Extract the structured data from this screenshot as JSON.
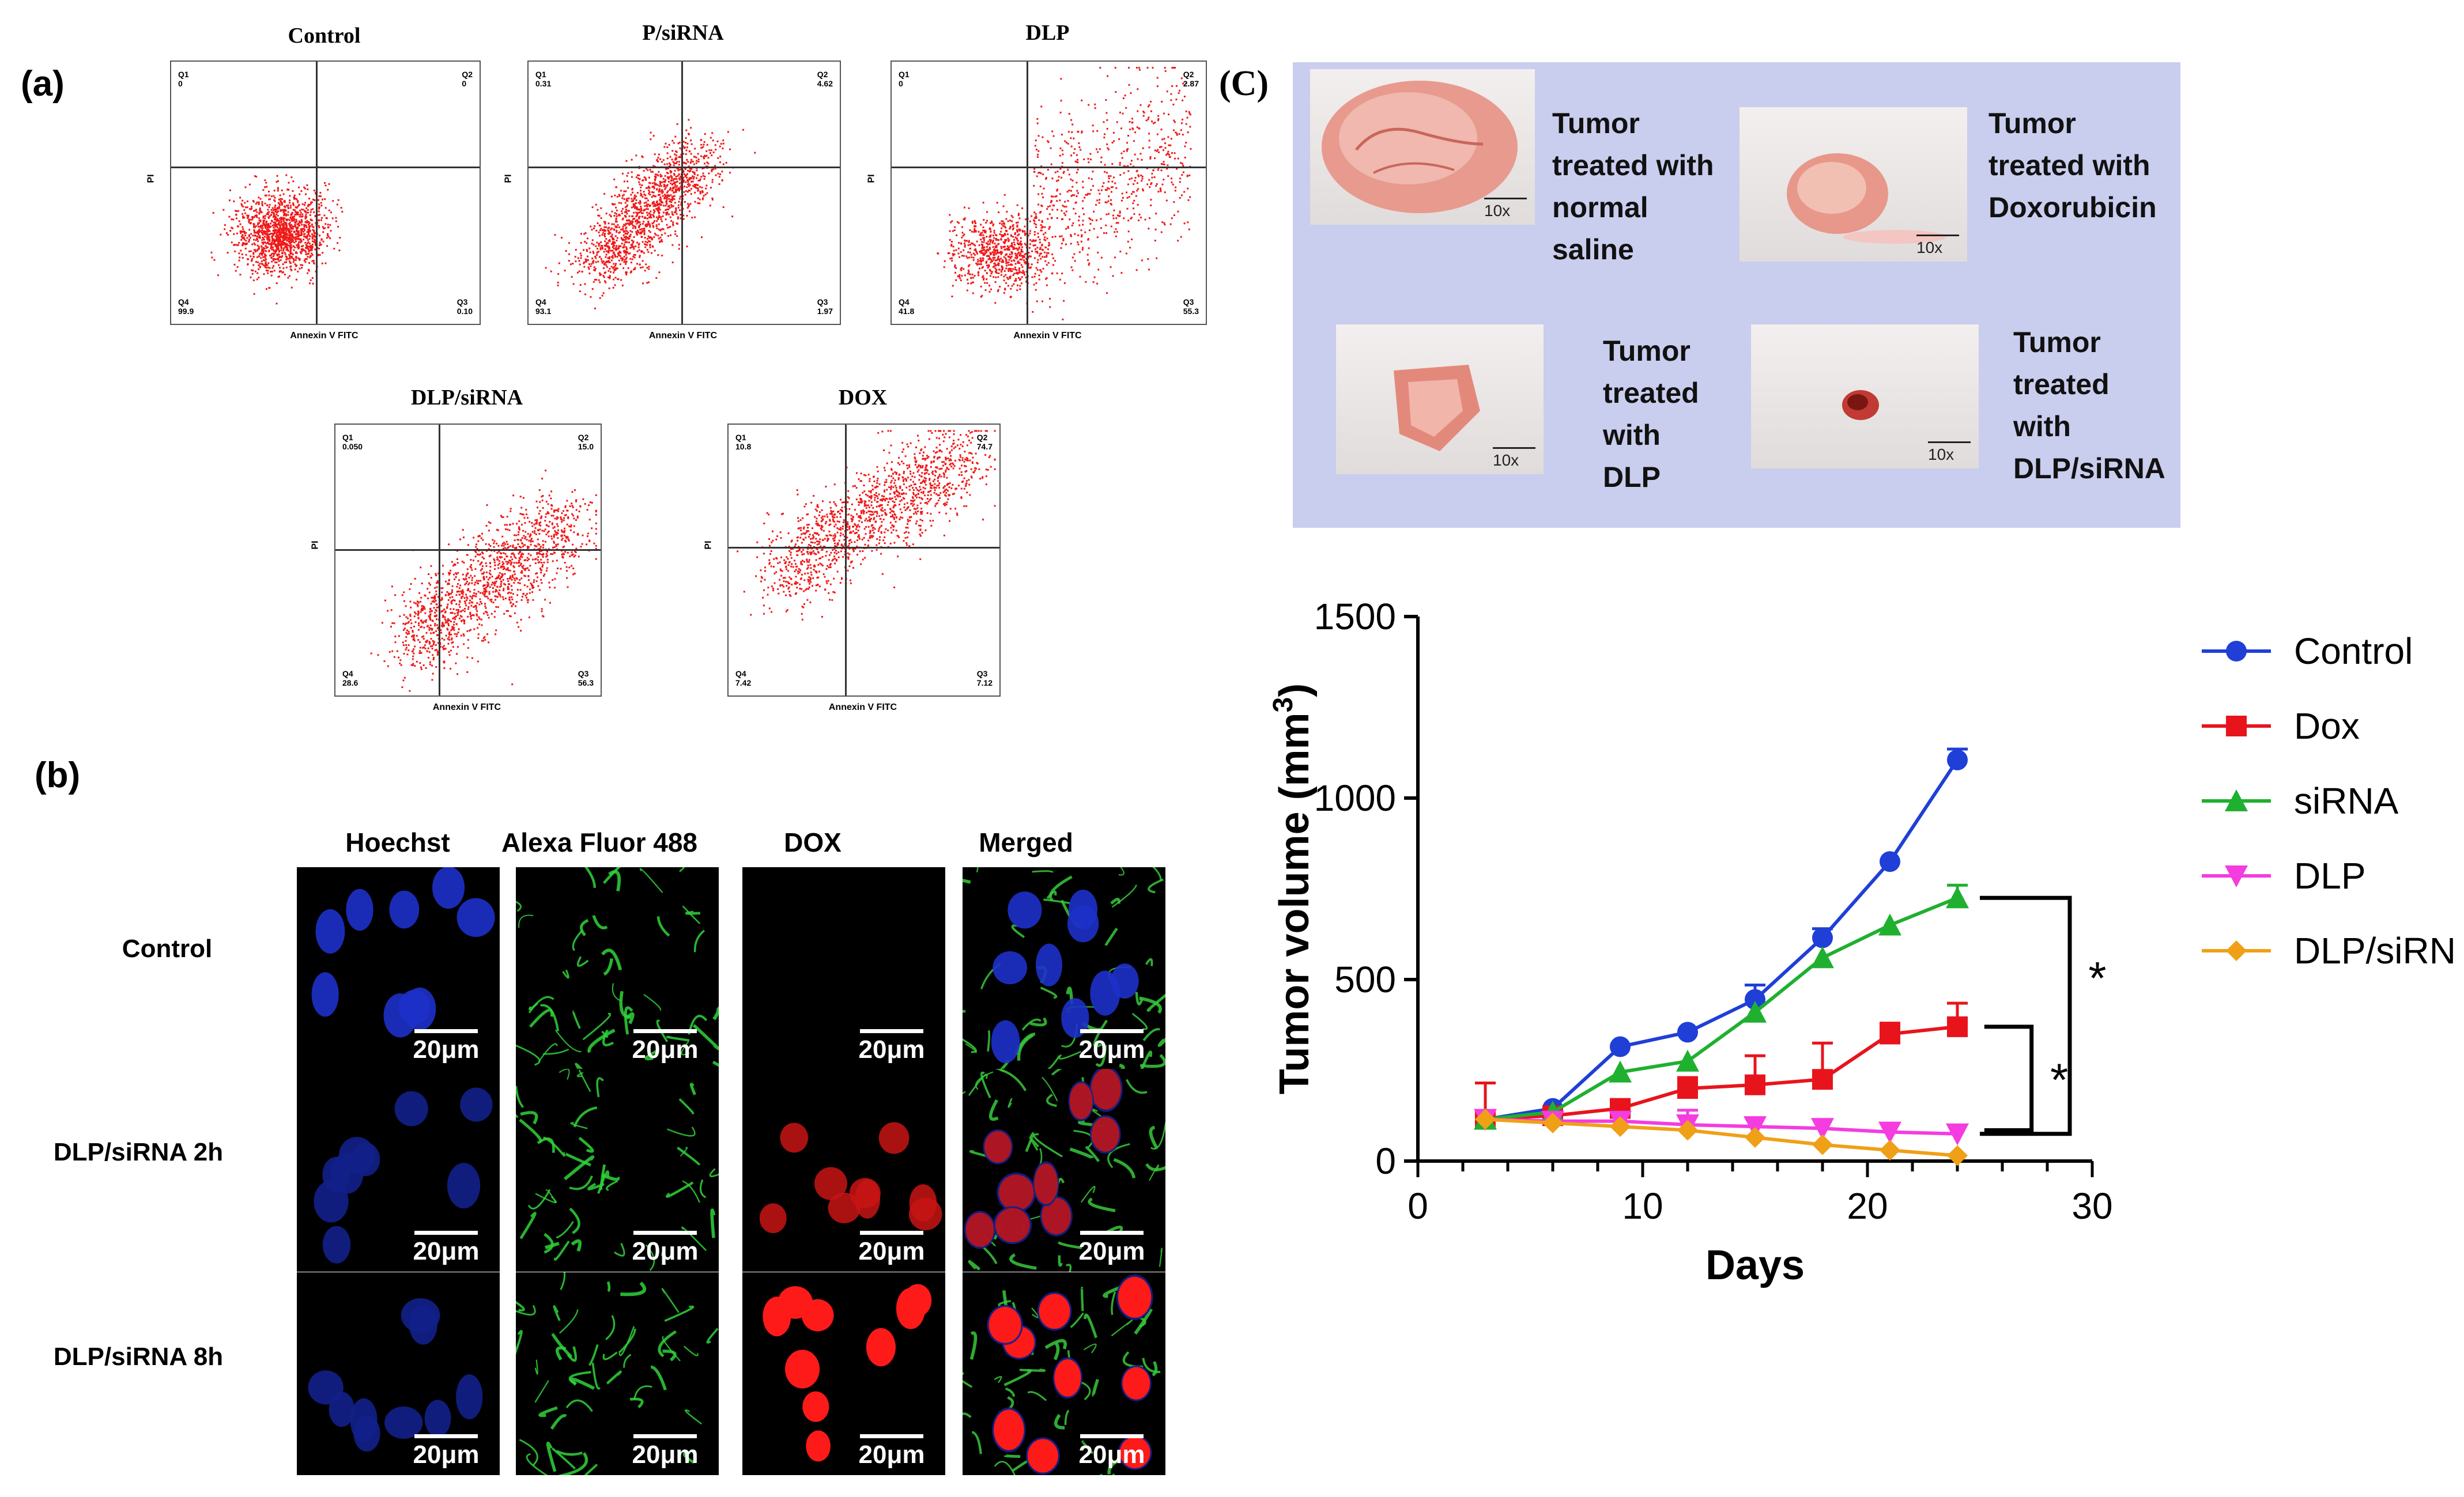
{
  "panel_labels": {
    "a": "(a)",
    "b": "(b)",
    "c": "(C)"
  },
  "flow": {
    "x_axis_label": "Annexin V FITC",
    "y_axis_label": "PI",
    "plots": [
      {
        "title": "Control",
        "q1": "Q1",
        "q1v": "0",
        "q2": "Q2",
        "q2v": "0",
        "q3": "Q3",
        "q3v": "0.10",
        "q4": "Q4",
        "q4v": "99.9"
      },
      {
        "title": "P/siRNA",
        "q1": "Q1",
        "q1v": "0.31",
        "q2": "Q2",
        "q2v": "4.62",
        "q3": "Q3",
        "q3v": "1.97",
        "q4": "Q4",
        "q4v": "93.1"
      },
      {
        "title": "DLP",
        "q1": "Q1",
        "q1v": "0",
        "q2": "Q2",
        "q2v": "2.87",
        "q3": "Q3",
        "q3v": "55.3",
        "q4": "Q4",
        "q4v": "41.8"
      },
      {
        "title": "DLP/siRNA",
        "q1": "Q1",
        "q1v": "0.050",
        "q2": "Q2",
        "q2v": "15.0",
        "q3": "Q3",
        "q3v": "56.3",
        "q4": "Q4",
        "q4v": "28.6"
      },
      {
        "title": "DOX",
        "q1": "Q1",
        "q1v": "10.8",
        "q2": "Q2",
        "q2v": "74.7",
        "q3": "Q3",
        "q3v": "7.12",
        "q4": "Q4",
        "q4v": "7.42"
      }
    ]
  },
  "microscopy": {
    "columns": [
      "Hoechst",
      "Alexa Fluor 488",
      "DOX",
      "Merged"
    ],
    "rows": [
      "Control",
      "DLP/siRNA 2h",
      "DLP/siRNA 8h"
    ],
    "scale_label": "20μm"
  },
  "tumor_photos": [
    {
      "caption_lines": [
        "Tumor",
        "treated with",
        "normal",
        "saline"
      ],
      "mag": "10x"
    },
    {
      "caption_lines": [
        "Tumor",
        "treated with",
        "Doxorubicin"
      ],
      "mag": "10x"
    },
    {
      "caption_lines": [
        "Tumor",
        "treated",
        "with",
        "DLP"
      ],
      "mag": "10x"
    },
    {
      "caption_lines": [
        "Tumor",
        "treated",
        "with",
        "DLP/siRNA"
      ],
      "mag": "10x"
    }
  ],
  "chart_data": {
    "type": "line",
    "title": "",
    "xlabel": "Days",
    "ylabel": "Tumor volume (mm",
    "ylabel_sup": "3",
    "ylabel_close": ")",
    "xlim": [
      0,
      30
    ],
    "ylim": [
      0,
      1500
    ],
    "xticks": [
      0,
      10,
      20,
      30
    ],
    "yticks": [
      0,
      500,
      1000,
      1500
    ],
    "x": [
      3,
      6,
      9,
      12,
      15,
      18,
      21,
      24
    ],
    "series": [
      {
        "name": "Control",
        "color": "#1f3fd6",
        "marker": "circle",
        "values": [
          115,
          145,
          315,
          355,
          445,
          615,
          825,
          1105
        ],
        "errors": [
          0,
          0,
          0,
          0,
          40,
          25,
          0,
          30
        ]
      },
      {
        "name": "Dox",
        "color": "#e8141c",
        "marker": "square",
        "values": [
          115,
          125,
          145,
          200,
          210,
          225,
          350,
          370
        ],
        "errors": [
          100,
          0,
          0,
          30,
          80,
          100,
          30,
          65
        ]
      },
      {
        "name": "siRNA",
        "color": "#1fb02f",
        "marker": "triangle-up",
        "values": [
          115,
          135,
          245,
          275,
          410,
          560,
          650,
          725
        ],
        "errors": [
          0,
          0,
          0,
          0,
          0,
          0,
          0,
          35
        ]
      },
      {
        "name": "DLP",
        "color": "#f43ce0",
        "marker": "triangle-down",
        "values": [
          115,
          110,
          110,
          100,
          95,
          90,
          80,
          75
        ],
        "errors": [
          0,
          0,
          0,
          40,
          0,
          0,
          0,
          0
        ]
      },
      {
        "name": "DLP/siRNA",
        "color": "#f0a016",
        "marker": "diamond",
        "values": [
          115,
          105,
          95,
          85,
          65,
          45,
          30,
          15
        ],
        "errors": [
          0,
          0,
          0,
          0,
          0,
          0,
          0,
          0
        ]
      }
    ],
    "significance": [
      "*",
      "*"
    ],
    "legend_position": "right"
  }
}
